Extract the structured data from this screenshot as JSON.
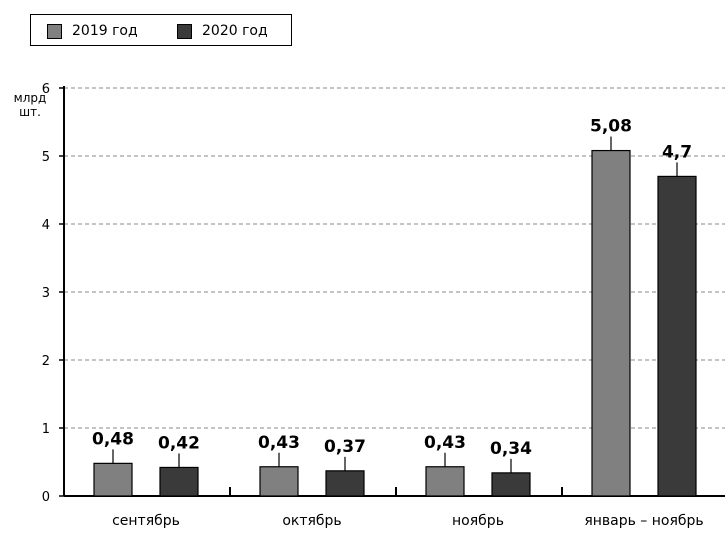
{
  "legend": {
    "items": [
      {
        "label": "2019 год",
        "color": "#808080"
      },
      {
        "label": "2020 год",
        "color": "#3a3a3a"
      }
    ]
  },
  "unit_label": [
    "млрд",
    "шт."
  ],
  "chart_data": {
    "type": "bar",
    "categories": [
      "сентябрь",
      "октябрь",
      "ноябрь",
      "январь – ноябрь"
    ],
    "series": [
      {
        "name": "2019 год",
        "values": [
          0.48,
          0.43,
          0.43,
          5.08
        ],
        "labels": [
          "0,48",
          "0,43",
          "0,43",
          "5,08"
        ],
        "color": "#808080"
      },
      {
        "name": "2020 год",
        "values": [
          0.42,
          0.37,
          0.34,
          4.7
        ],
        "labels": [
          "0,42",
          "0,37",
          "0,34",
          "4,7"
        ],
        "color": "#3a3a3a"
      }
    ],
    "ylabel": "млрд шт.",
    "ylim": [
      0,
      6
    ],
    "yticks": [
      "0",
      "1",
      "2",
      "3",
      "4",
      "5",
      "6"
    ],
    "grid": true,
    "legend_position": "top-left"
  }
}
